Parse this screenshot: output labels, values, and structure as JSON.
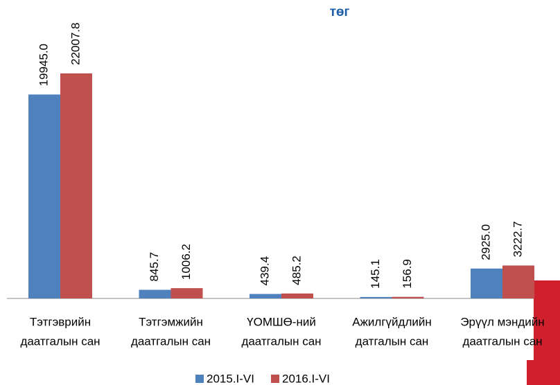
{
  "chart_data": {
    "type": "bar",
    "title": "төг",
    "categories": [
      [
        "Тэтгэврийн",
        "даатгалын сан"
      ],
      [
        "Тэтгэмжийн",
        "даатгалын сан"
      ],
      [
        "ҮОМШӨ-ний",
        "даатгалын сан"
      ],
      [
        "Ажилгүйдлийн",
        "датгалын сан"
      ],
      [
        "Эрүүл мэндийн",
        "даатгалын сан"
      ]
    ],
    "series": [
      {
        "name": "2015.I-VI",
        "color": "#4f81bd",
        "values": [
          19945.0,
          845.7,
          439.4,
          145.1,
          2925.0
        ],
        "value_labels": [
          "19945.0",
          "845.7",
          "439.4",
          "145.1",
          "2925.0"
        ]
      },
      {
        "name": "2016.I-VI",
        "color": "#c0504d",
        "values": [
          22007.8,
          1006.2,
          485.2,
          156.9,
          3222.7
        ],
        "value_labels": [
          "22007.8",
          "1006.2",
          "485.2",
          "156.9",
          "3222.7"
        ]
      }
    ],
    "legend": "bottom"
  }
}
